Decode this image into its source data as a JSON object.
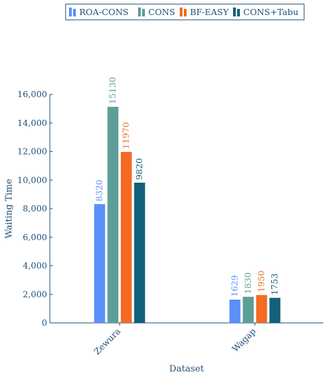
{
  "chart_data": {
    "type": "bar",
    "xlabel": "Dataset",
    "ylabel": "Waiting Time",
    "categories": [
      "Zewura",
      "Wagap"
    ],
    "ylim": [
      0,
      16000
    ],
    "yticks": [
      0,
      2000,
      4000,
      6000,
      8000,
      10000,
      12000,
      14000,
      16000
    ],
    "ytick_labels": [
      "0",
      "2,000",
      "4,000",
      "6,000",
      "8,000",
      "10,000",
      "12,000",
      "14,000",
      "16,000"
    ],
    "grid": false,
    "legend_position": "top",
    "series": [
      {
        "name": "ROA-CONS",
        "color": "#5b8ff9",
        "values": [
          8320,
          1629
        ],
        "labels": [
          "8320",
          "1629"
        ]
      },
      {
        "name": "CONS",
        "color": "#5e9e98",
        "values": [
          15130,
          1830
        ],
        "labels": [
          "15130",
          "1830"
        ]
      },
      {
        "name": "BF-EASY",
        "color": "#f26b21",
        "values": [
          11970,
          1950
        ],
        "labels": [
          "11970",
          "1950"
        ]
      },
      {
        "name": "CONS+Tabu",
        "color": "#13607a",
        "values": [
          9820,
          1753
        ],
        "labels": [
          "9820",
          "1753"
        ]
      }
    ]
  }
}
